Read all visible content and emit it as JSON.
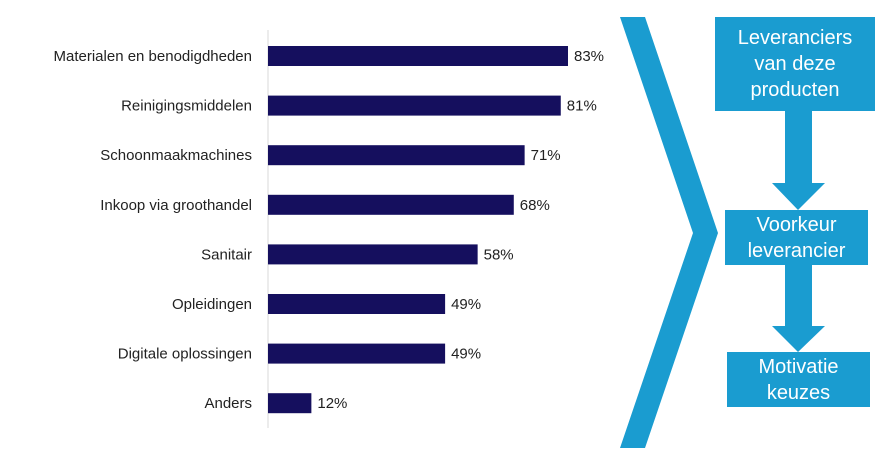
{
  "chart_data": {
    "type": "bar",
    "orientation": "horizontal",
    "categories": [
      "Materialen en benodigdheden",
      "Reinigingsmiddelen",
      "Schoonmaakmachines",
      "Inkoop via groothandel",
      "Sanitair",
      "Opleidingen",
      "Digitale oplossingen",
      "Anders"
    ],
    "values": [
      83,
      81,
      71,
      68,
      58,
      49,
      49,
      12
    ],
    "data_labels": [
      "83%",
      "81%",
      "71%",
      "68%",
      "58%",
      "49%",
      "49%",
      "12%"
    ],
    "xlim": [
      0,
      100
    ],
    "grid": false,
    "bar_color": "#150f5e"
  },
  "diagram": {
    "color": "#1a9cd0",
    "boxes": [
      "Leveranciers\nvan deze\nproducten",
      "Voorkeur\nleverancier",
      "Motivatie\nkeuzes"
    ]
  }
}
